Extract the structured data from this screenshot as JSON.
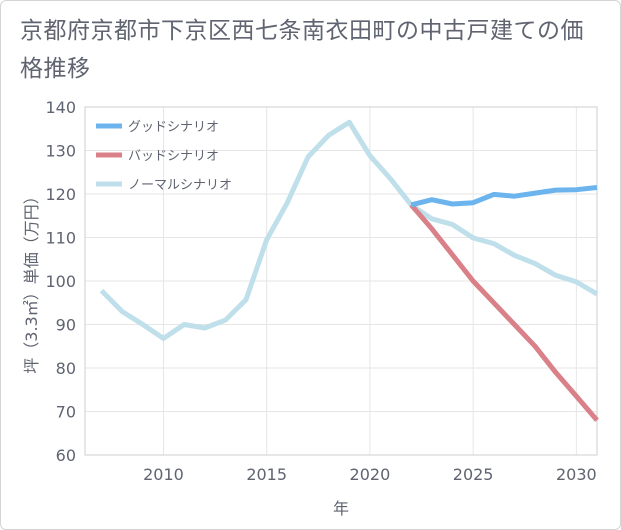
{
  "title": "京都府京都市下京区西七条南衣田町の中古戸建ての価格推移",
  "chart_data": {
    "type": "line",
    "xlabel": "年",
    "ylabel": "坪（3.3㎡）単価（万円）",
    "xlim": [
      2006.2,
      2031
    ],
    "ylim": [
      60,
      140
    ],
    "x_ticks": [
      2010,
      2015,
      2020,
      2025,
      2030
    ],
    "y_ticks": [
      60,
      70,
      80,
      90,
      100,
      110,
      120,
      130,
      140
    ],
    "grid": true,
    "legend_position": "top-left",
    "series": [
      {
        "name": "グッドシナリオ",
        "color": "#6cb4ee",
        "x": [
          2022,
          2023,
          2024,
          2025,
          2026,
          2027,
          2028,
          2029,
          2030,
          2031
        ],
        "values": [
          117.5,
          118.7,
          117.7,
          118.0,
          119.9,
          119.5,
          120.2,
          120.9,
          121.0,
          121.5
        ]
      },
      {
        "name": "バッドシナリオ",
        "color": "#d98088",
        "x": [
          2022,
          2023,
          2024,
          2025,
          2026,
          2027,
          2028,
          2029,
          2030,
          2031
        ],
        "values": [
          117.5,
          112.0,
          106.0,
          100.0,
          95.0,
          90.0,
          85.0,
          79.0,
          73.5,
          68.0
        ]
      },
      {
        "name": "ノーマルシナリオ",
        "color": "#bfdfeb",
        "x": [
          2007,
          2008,
          2009,
          2010,
          2011,
          2012,
          2013,
          2014,
          2015,
          2016,
          2017,
          2018,
          2019,
          2020,
          2021,
          2022,
          2023,
          2024,
          2025,
          2026,
          2027,
          2028,
          2029,
          2030,
          2031
        ],
        "values": [
          97.8,
          93.0,
          90.0,
          86.8,
          90.0,
          89.2,
          91.0,
          95.7,
          109.5,
          118.0,
          128.5,
          133.5,
          136.5,
          128.8,
          123.5,
          117.5,
          114.3,
          113.0,
          109.9,
          108.6,
          105.9,
          104.0,
          101.3,
          99.8,
          97.0
        ]
      }
    ]
  }
}
